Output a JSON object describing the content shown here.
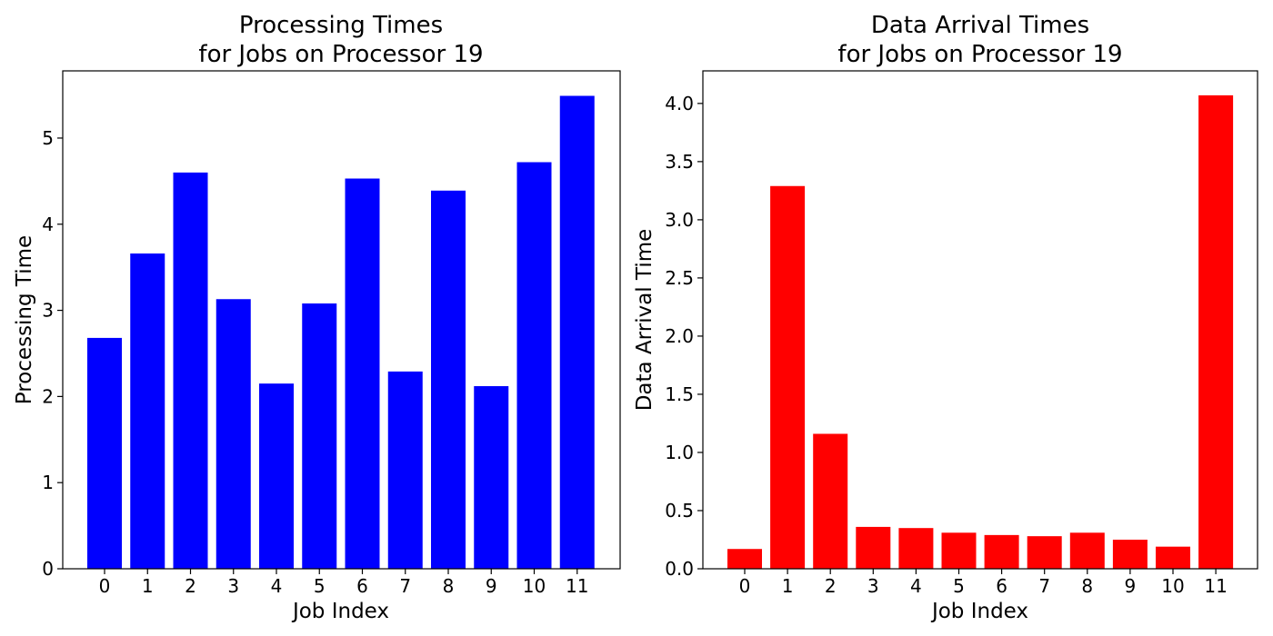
{
  "chart_data": [
    {
      "type": "bar",
      "title_lines": [
        "Processing Times",
        "for Jobs on Processor 19"
      ],
      "xlabel": "Job Index",
      "ylabel": "Processing Time",
      "categories": [
        "0",
        "1",
        "2",
        "3",
        "4",
        "5",
        "6",
        "7",
        "8",
        "9",
        "10",
        "11"
      ],
      "values": [
        2.68,
        3.66,
        4.6,
        3.13,
        2.15,
        3.08,
        4.53,
        2.29,
        4.39,
        2.12,
        4.72,
        5.49
      ],
      "ylim": [
        0,
        5.78
      ],
      "yticks": [
        0,
        1,
        2,
        3,
        4,
        5
      ],
      "ytick_labels": [
        "0",
        "1",
        "2",
        "3",
        "4",
        "5"
      ],
      "color": "#0000ff",
      "grid": false
    },
    {
      "type": "bar",
      "title_lines": [
        "Data Arrival Times",
        "for Jobs on Processor 19"
      ],
      "xlabel": "Job Index",
      "ylabel": "Data Arrival Time",
      "categories": [
        "0",
        "1",
        "2",
        "3",
        "4",
        "5",
        "6",
        "7",
        "8",
        "9",
        "10",
        "11"
      ],
      "values": [
        0.17,
        3.29,
        1.16,
        0.36,
        0.35,
        0.31,
        0.29,
        0.28,
        0.31,
        0.25,
        0.19,
        4.07
      ],
      "ylim": [
        0,
        4.28
      ],
      "yticks": [
        0,
        0.5,
        1.0,
        1.5,
        2.0,
        2.5,
        3.0,
        3.5,
        4.0
      ],
      "ytick_labels": [
        "0.0",
        "0.5",
        "1.0",
        "1.5",
        "2.0",
        "2.5",
        "3.0",
        "3.5",
        "4.0"
      ],
      "color": "#ff0000",
      "grid": false
    }
  ]
}
